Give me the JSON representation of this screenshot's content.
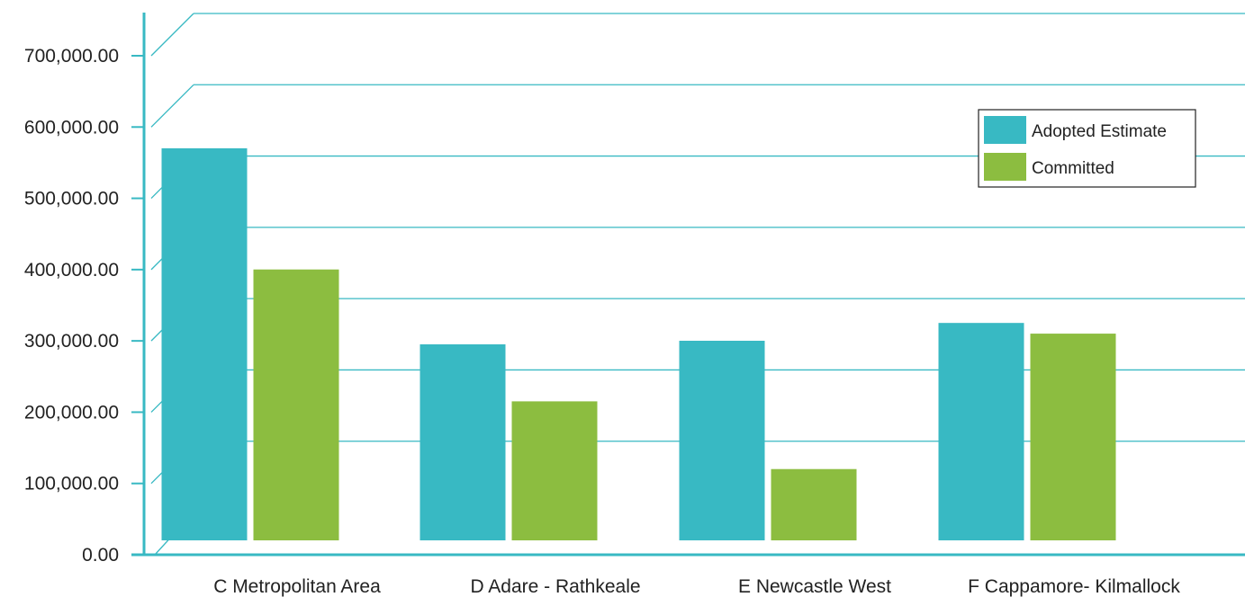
{
  "chart_data": {
    "type": "bar",
    "categories": [
      "C Metropolitan Area",
      "D Adare - Rathkeale",
      "E Newcastle West",
      "F Cappamore- Kilmallock"
    ],
    "series": [
      {
        "name": "Adopted Estimate",
        "values": [
          550000,
          275000,
          280000,
          305000
        ]
      },
      {
        "name": "Committed",
        "values": [
          380000,
          195000,
          100000,
          290000
        ]
      }
    ],
    "ylim": [
      0,
      700000
    ],
    "yticks": [
      "0.00",
      "100,000.00",
      "200,000.00",
      "300,000.00",
      "400,000.00",
      "500,000.00",
      "600,000.00",
      "700,000.00"
    ],
    "grid": true,
    "legend_position": "top-right",
    "colors": {
      "Adopted Estimate": "#38b9c3",
      "Committed": "#8cbd40",
      "axis": "#38b9c3",
      "grid": "#38b9c3"
    }
  }
}
